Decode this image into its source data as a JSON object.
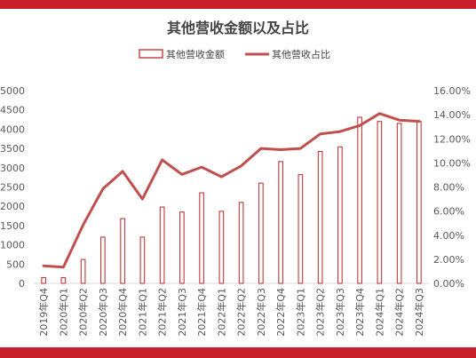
{
  "chart_data": {
    "type": "bar+line",
    "title": "其他营收金额以及占比",
    "categories": [
      "2019年Q4",
      "2020年Q1",
      "2020年Q2",
      "2020年Q3",
      "2020年Q4",
      "2021年Q1",
      "2021年Q2",
      "2021年Q3",
      "2021年Q4",
      "2022年Q1",
      "2022年Q2",
      "2022年Q3",
      "2022年Q4",
      "2023年Q1",
      "2023年Q2",
      "2023年Q3",
      "2023年Q4",
      "2024年Q1",
      "2024年Q2",
      "2024年Q3"
    ],
    "series": [
      {
        "name": "其他营收金额",
        "type": "bar",
        "axis": "left",
        "values": [
          150,
          150,
          620,
          1200,
          1680,
          1200,
          1980,
          1850,
          2350,
          1870,
          2100,
          2600,
          3160,
          2820,
          3420,
          3540,
          4310,
          4200,
          4150,
          4200
        ]
      },
      {
        "name": "其他营收占比",
        "type": "line",
        "axis": "right",
        "values": [
          0.0145,
          0.0135,
          0.0485,
          0.0785,
          0.093,
          0.07,
          0.1025,
          0.0905,
          0.0965,
          0.0885,
          0.0975,
          0.112,
          0.111,
          0.112,
          0.124,
          0.126,
          0.131,
          0.141,
          0.1355,
          0.1345
        ]
      }
    ],
    "y_left": {
      "ylim": [
        0,
        5000
      ],
      "ticks": [
        "0",
        "500",
        "1000",
        "1500",
        "2000",
        "2500",
        "3000",
        "3500",
        "4000",
        "4500",
        "5000"
      ]
    },
    "y_right": {
      "ylim": [
        0,
        0.16
      ],
      "ticks": [
        "0.00%",
        "2.00%",
        "4.00%",
        "6.00%",
        "8.00%",
        "10.00%",
        "12.00%",
        "14.00%",
        "16.00%"
      ]
    },
    "legend": "top-center",
    "grid": false,
    "colors": {
      "bar_stroke": "#c0393b",
      "line": "#c0504d",
      "frame": "#c8202a"
    }
  }
}
